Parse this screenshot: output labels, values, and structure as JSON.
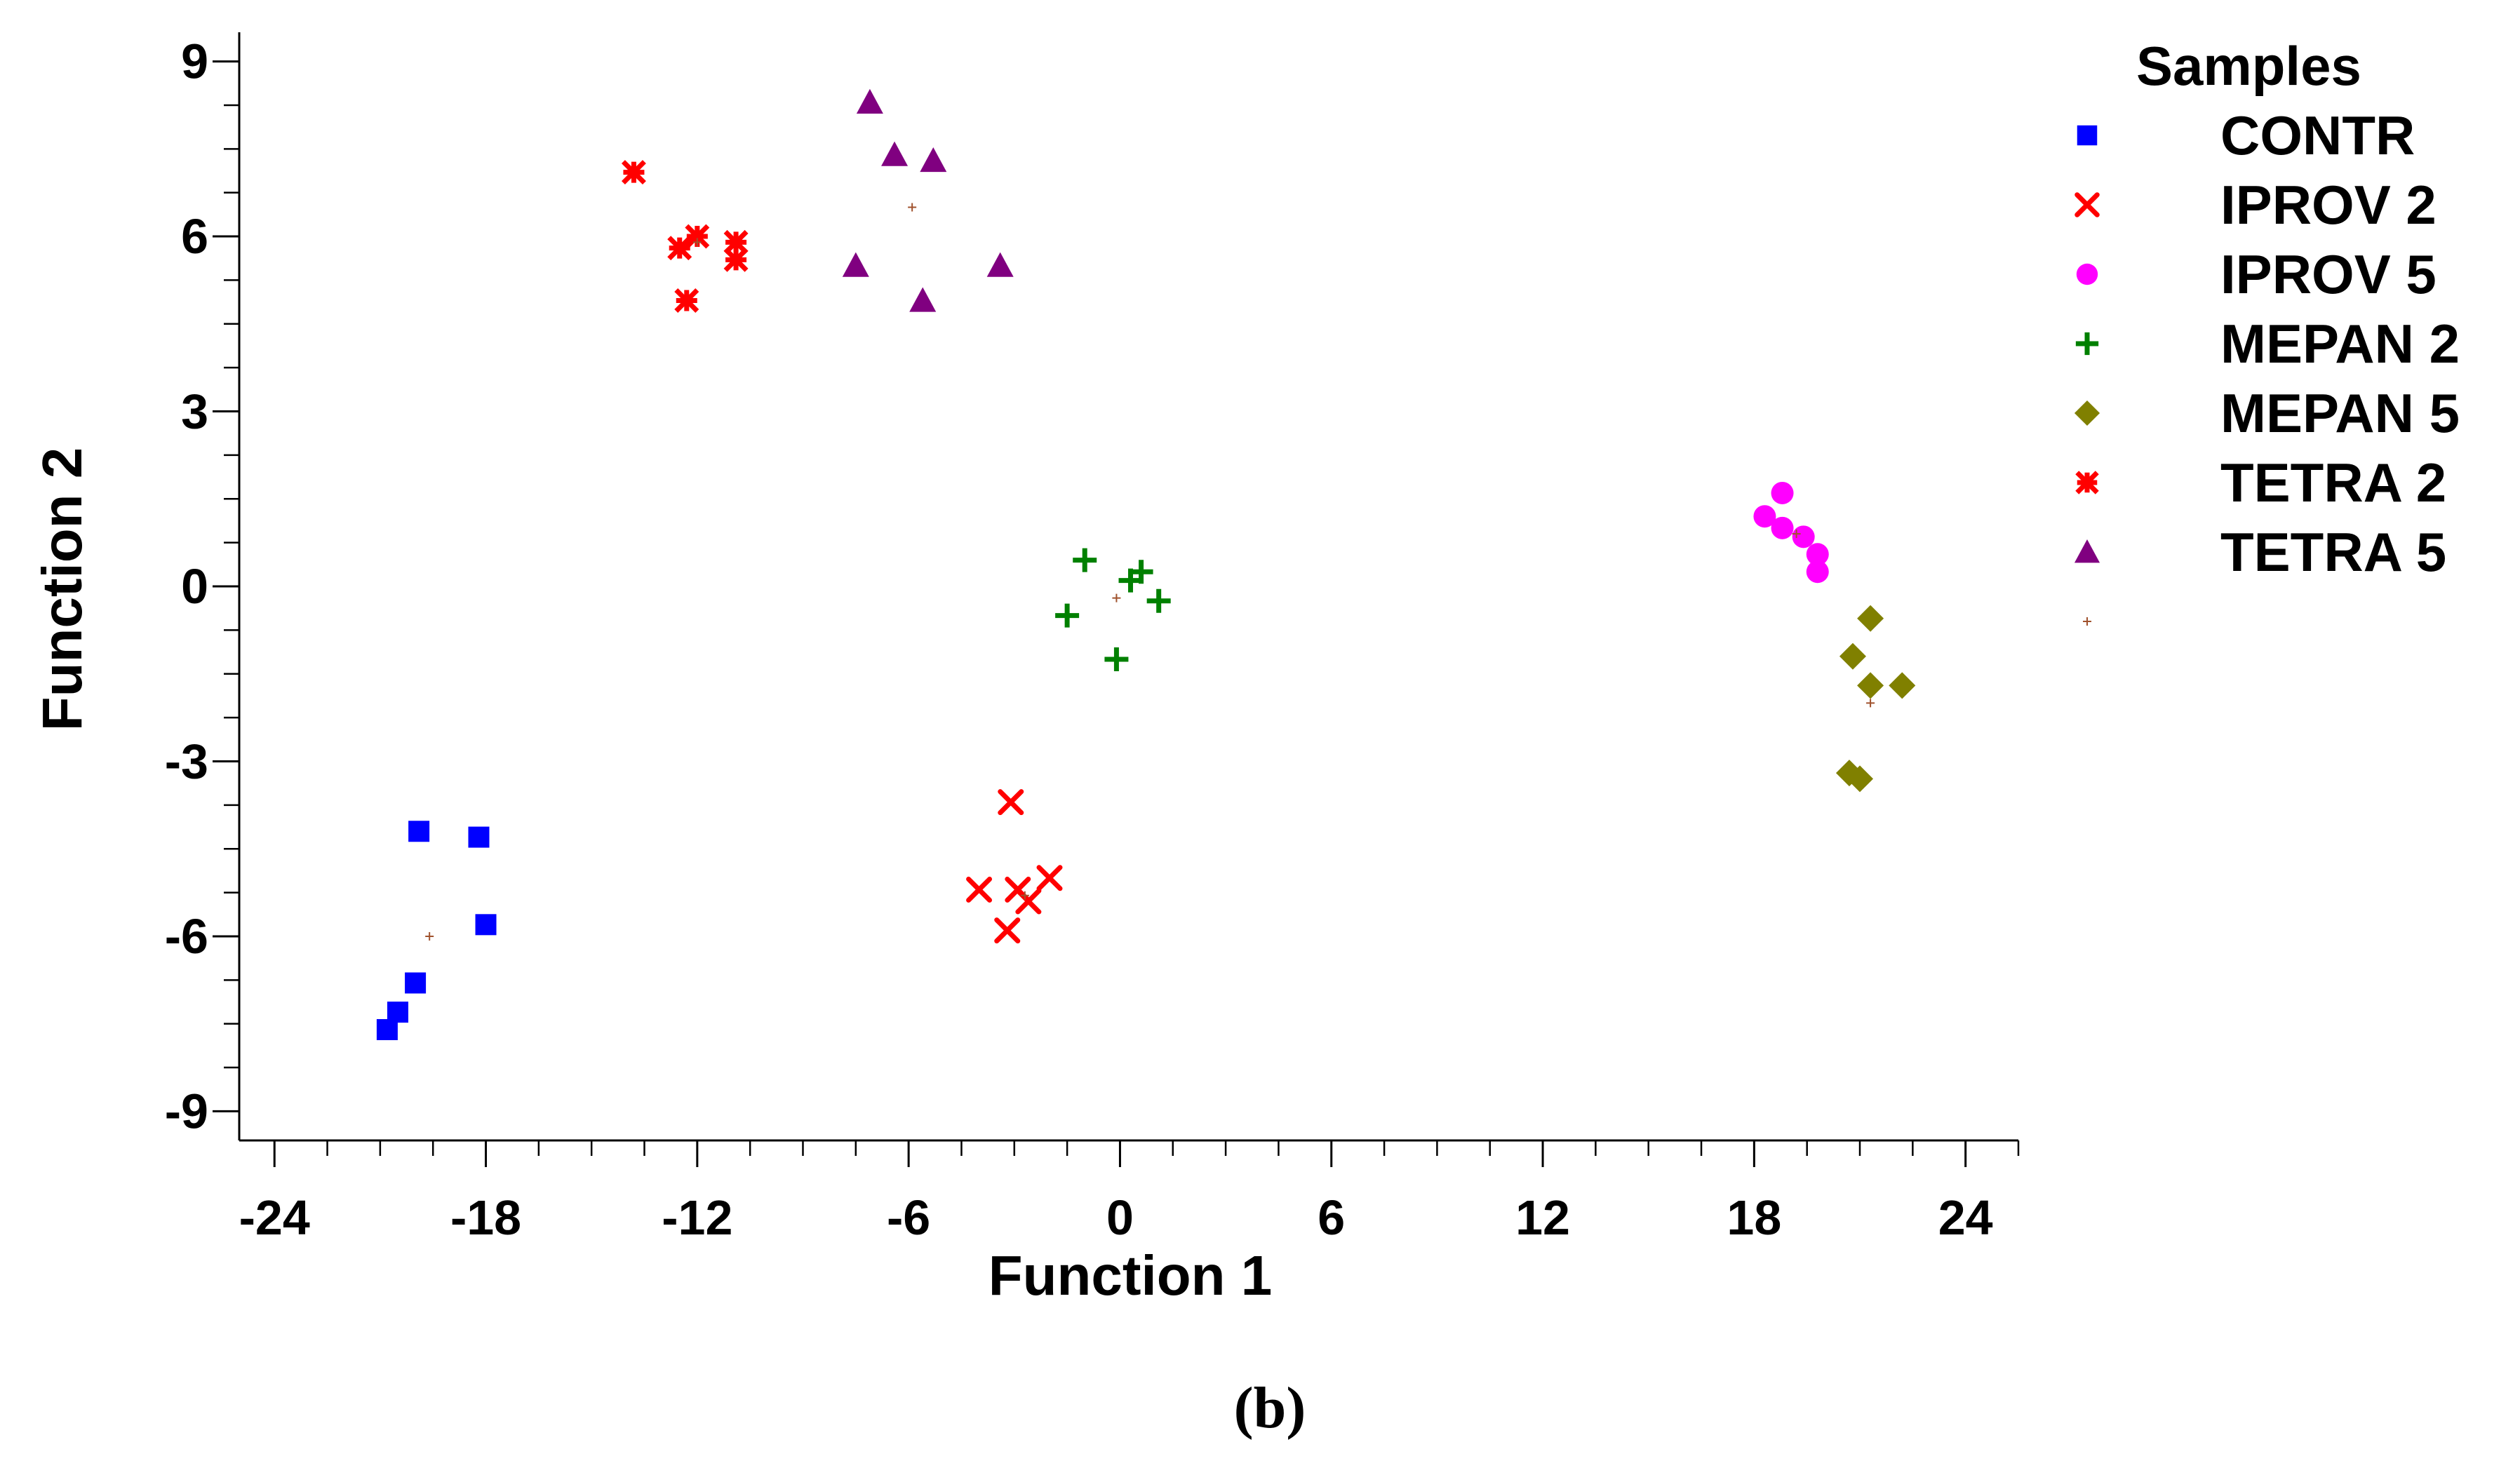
{
  "caption": "(b)",
  "chart_data": {
    "type": "scatter",
    "title": "",
    "xlabel": "Function 1",
    "ylabel": "Function 2",
    "xlim": [
      -25,
      25.5
    ],
    "ylim": [
      -9.5,
      9.5
    ],
    "xticks": [
      "-24",
      "-18",
      "-12",
      "-6",
      "0",
      "6",
      "12",
      "18",
      "24"
    ],
    "yticks": [
      "9",
      "6",
      "3",
      "0",
      "-3",
      "-6",
      "-9"
    ],
    "grid": false,
    "legend": {
      "title": "Samples",
      "placement": "right"
    },
    "series": [
      {
        "name": "CONTR",
        "marker": "square",
        "color": "#0000ff",
        "points": [
          [
            -19.9,
            -4.2
          ],
          [
            -18.2,
            -4.3
          ],
          [
            -18.0,
            -5.8
          ],
          [
            -20.0,
            -6.8
          ],
          [
            -20.5,
            -7.3
          ],
          [
            -20.8,
            -7.6
          ]
        ]
      },
      {
        "name": "IPROV 2",
        "marker": "x",
        "color": "#ff0000",
        "points": [
          [
            -3.1,
            -3.7
          ],
          [
            -4.0,
            -5.2
          ],
          [
            -2.9,
            -5.2
          ],
          [
            -2.6,
            -5.4
          ],
          [
            -2.0,
            -5.0
          ],
          [
            -3.2,
            -5.9
          ]
        ]
      },
      {
        "name": "IPROV 5",
        "marker": "circle",
        "color": "#ff00ff",
        "points": [
          [
            18.3,
            1.2
          ],
          [
            18.8,
            1.6
          ],
          [
            18.8,
            1.0
          ],
          [
            19.4,
            0.85
          ],
          [
            19.8,
            0.55
          ],
          [
            19.8,
            0.25
          ]
        ]
      },
      {
        "name": "MEPAN 2",
        "marker": "plus",
        "color": "#008000",
        "points": [
          [
            -1.0,
            0.45
          ],
          [
            0.6,
            0.25
          ],
          [
            0.3,
            0.1
          ],
          [
            -1.5,
            -0.5
          ],
          [
            1.1,
            -0.25
          ],
          [
            -0.1,
            -1.25
          ]
        ]
      },
      {
        "name": "MEPAN 5",
        "marker": "diamond",
        "color": "#808000",
        "points": [
          [
            21.3,
            -0.55
          ],
          [
            20.8,
            -1.2
          ],
          [
            21.3,
            -1.7
          ],
          [
            22.2,
            -1.7
          ],
          [
            20.7,
            -3.2
          ],
          [
            21.0,
            -3.3
          ]
        ]
      },
      {
        "name": "TETRA 2",
        "marker": "asterisk",
        "color": "#ff0000",
        "points": [
          [
            -13.8,
            7.1
          ],
          [
            -12.0,
            6.0
          ],
          [
            -12.5,
            5.8
          ],
          [
            -10.9,
            5.9
          ],
          [
            -10.9,
            5.6
          ],
          [
            -12.3,
            4.9
          ]
        ]
      },
      {
        "name": "TETRA 5",
        "marker": "triangle",
        "color": "#800080",
        "points": [
          [
            -7.1,
            8.3
          ],
          [
            -6.4,
            7.4
          ],
          [
            -5.3,
            7.3
          ],
          [
            -7.5,
            5.5
          ],
          [
            -5.6,
            4.9
          ],
          [
            -3.4,
            5.5
          ]
        ]
      },
      {
        "name": "",
        "marker": "centroid",
        "color": "#a0522d",
        "points": [
          [
            -19.6,
            -6.0
          ],
          [
            -2.7,
            -5.3
          ],
          [
            19.2,
            0.9
          ],
          [
            -0.1,
            -0.2
          ],
          [
            21.3,
            -2.0
          ],
          [
            -12.0,
            5.9
          ],
          [
            -5.9,
            6.5
          ]
        ]
      }
    ]
  }
}
